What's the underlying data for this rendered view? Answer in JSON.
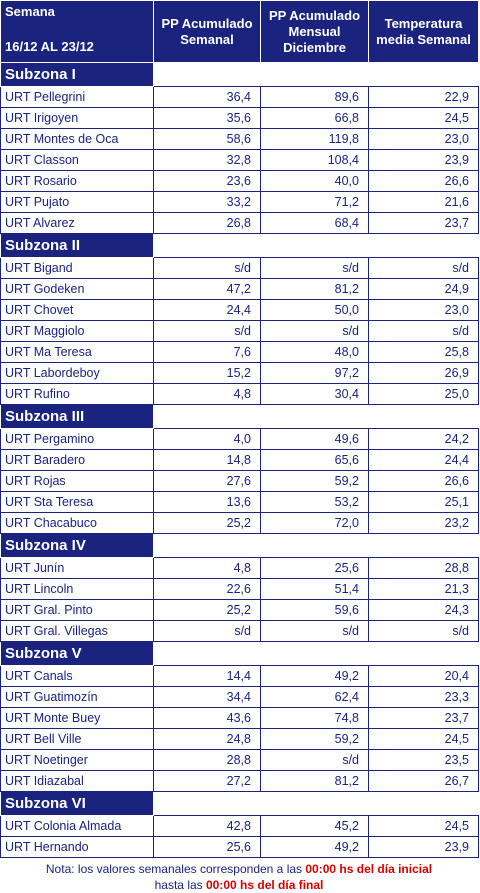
{
  "header": {
    "week_label": "Semana",
    "week_range": "16/12 AL 23/12",
    "columns": [
      "PP Acumulado Semanal",
      "PP Acumulado Mensual Diciembre",
      "Temperatura media Semanal"
    ]
  },
  "zones": [
    {
      "name": "Subzona I",
      "rows": [
        [
          "URT Pellegrini",
          "36,4",
          "89,6",
          "22,9"
        ],
        [
          "URT Irigoyen",
          "35,6",
          "66,8",
          "24,5"
        ],
        [
          "URT Montes de Oca",
          "58,6",
          "119,8",
          "23,0"
        ],
        [
          "URT Classon",
          "32,8",
          "108,4",
          "23,9"
        ],
        [
          "URT Rosario",
          "23,6",
          "40,0",
          "26,6"
        ],
        [
          "URT Pujato",
          "33,2",
          "71,2",
          "21,6"
        ],
        [
          "URT Alvarez",
          "26,8",
          "68,4",
          "23,7"
        ]
      ]
    },
    {
      "name": "Subzona II",
      "rows": [
        [
          "URT Bigand",
          "s/d",
          "s/d",
          "s/d"
        ],
        [
          "URT Godeken",
          "47,2",
          "81,2",
          "24,9"
        ],
        [
          "URT Chovet",
          "24,4",
          "50,0",
          "23,0"
        ],
        [
          "URT Maggiolo",
          "s/d",
          "s/d",
          "s/d"
        ],
        [
          "URT Ma Teresa",
          "7,6",
          "48,0",
          "25,8"
        ],
        [
          "URT Labordeboy",
          "15,2",
          "97,2",
          "26,9"
        ],
        [
          "URT Rufino",
          "4,8",
          "30,4",
          "25,0"
        ]
      ]
    },
    {
      "name": "Subzona III",
      "rows": [
        [
          "URT Pergamino",
          "4,0",
          "49,6",
          "24,2"
        ],
        [
          "URT Baradero",
          "14,8",
          "65,6",
          "24,4"
        ],
        [
          "URT Rojas",
          "27,6",
          "59,2",
          "26,6"
        ],
        [
          "URT Sta Teresa",
          "13,6",
          "53,2",
          "25,1"
        ],
        [
          "URT Chacabuco",
          "25,2",
          "72,0",
          "23,2"
        ]
      ]
    },
    {
      "name": "Subzona IV",
      "rows": [
        [
          "URT Junín",
          "4,8",
          "25,6",
          "28,8"
        ],
        [
          "URT Lincoln",
          "22,6",
          "51,4",
          "21,3"
        ],
        [
          "URT Gral. Pinto",
          "25,2",
          "59,6",
          "24,3"
        ],
        [
          "URT Gral. Villegas",
          "s/d",
          "s/d",
          "s/d"
        ]
      ]
    },
    {
      "name": "Subzona V",
      "rows": [
        [
          "URT Canals",
          "14,4",
          "49,2",
          "20,4"
        ],
        [
          "URT Guatimozín",
          "34,4",
          "62,4",
          "23,3"
        ],
        [
          "URT Monte Buey",
          "43,6",
          "74,8",
          "23,7"
        ],
        [
          "URT Bell Ville",
          "24,8",
          "59,2",
          "24,5"
        ],
        [
          "URT Noetinger",
          "28,8",
          "s/d",
          "23,5"
        ],
        [
          "URT Idiazabal",
          "27,2",
          "81,2",
          "26,7"
        ]
      ]
    },
    {
      "name": "Subzona VI",
      "rows": [
        [
          "URT Colonia Almada",
          "42,8",
          "45,2",
          "24,5"
        ],
        [
          "URT Hernando",
          "25,6",
          "49,2",
          "23,9"
        ]
      ]
    }
  ],
  "note": {
    "line1_text": "Nota: los valores semanales corresponden a las ",
    "line1_highlight": "00:00 hs del día inicial",
    "line2_text": "hasta las ",
    "line2_highlight": "00:00 hs del día final"
  },
  "colors": {
    "header_bg": "#1a237e",
    "text": "#1a237e",
    "highlight": "#d40000"
  }
}
